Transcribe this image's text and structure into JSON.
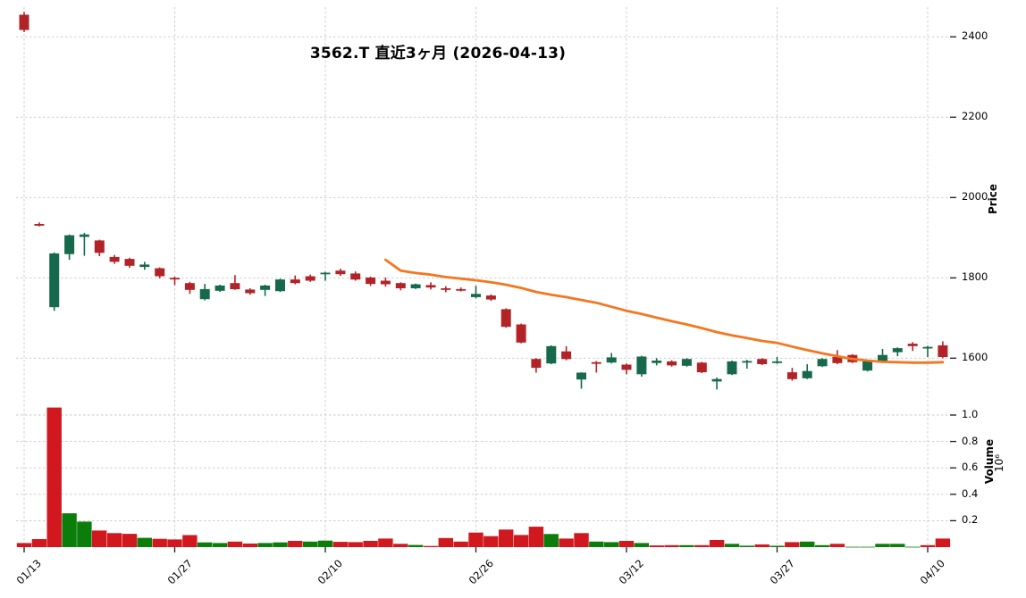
{
  "title": "3562.T 直近3ヶ月 (2026-04-13)",
  "axes": {
    "price_label": "Price",
    "volume_label": "Volume",
    "volume_unit": "10⁶",
    "price_ticks": [
      2400,
      2200,
      2000,
      1800,
      1600
    ],
    "volume_ticks": [
      1.0,
      0.8,
      0.6,
      0.4,
      0.2
    ],
    "x_ticks": [
      {
        "day": 0,
        "label": "01/13"
      },
      {
        "day": 10,
        "label": "01/27"
      },
      {
        "day": 20,
        "label": "02/10"
      },
      {
        "day": 30,
        "label": "02/26"
      },
      {
        "day": 40,
        "label": "03/12"
      },
      {
        "day": 50,
        "label": "03/27"
      },
      {
        "day": 60,
        "label": "04/10"
      }
    ]
  },
  "chart_data": {
    "type": "candlestick+volume",
    "title": "3562.T 直近3ヶ月 (2026-04-13)",
    "price_axis_range": [
      1500,
      2475
    ],
    "volume_axis_range": [
      0,
      1.11
    ],
    "grid": "dashed",
    "dates": [
      "01/13",
      "01/14",
      "01/15",
      "01/16",
      "01/19",
      "01/20",
      "01/21",
      "01/22",
      "01/23",
      "01/26",
      "01/27",
      "01/28",
      "01/29",
      "01/30",
      "02/02",
      "02/03",
      "02/04",
      "02/05",
      "02/06",
      "02/09",
      "02/10",
      "02/12",
      "02/13",
      "02/16",
      "02/17",
      "02/18",
      "02/19",
      "02/20",
      "02/24",
      "02/25",
      "02/26",
      "02/27",
      "03/02",
      "03/03",
      "03/04",
      "03/05",
      "03/06",
      "03/09",
      "03/10",
      "03/11",
      "03/12",
      "03/13",
      "03/16",
      "03/17",
      "03/18",
      "03/19",
      "03/23",
      "03/24",
      "03/25",
      "03/26",
      "03/27",
      "03/30",
      "03/31",
      "04/01",
      "04/02",
      "04/03",
      "04/06",
      "04/07",
      "04/08",
      "04/09",
      "04/10",
      "04/13"
    ],
    "ohlc": [
      [
        2455,
        2462,
        2412,
        2417
      ],
      [
        1934,
        1938,
        1928,
        1930
      ],
      [
        1727,
        1863,
        1718,
        1861
      ],
      [
        1859,
        1908,
        1845,
        1906
      ],
      [
        1902,
        1912,
        1855,
        1908
      ],
      [
        1893,
        1895,
        1854,
        1862
      ],
      [
        1852,
        1857,
        1835,
        1840
      ],
      [
        1847,
        1850,
        1825,
        1830
      ],
      [
        1827,
        1840,
        1820,
        1833
      ],
      [
        1824,
        1826,
        1799,
        1804
      ],
      [
        1800,
        1803,
        1782,
        1798
      ],
      [
        1787,
        1790,
        1760,
        1770
      ],
      [
        1747,
        1785,
        1744,
        1772
      ],
      [
        1768,
        1783,
        1765,
        1781
      ],
      [
        1787,
        1807,
        1770,
        1772
      ],
      [
        1771,
        1774,
        1758,
        1762
      ],
      [
        1770,
        1783,
        1755,
        1781
      ],
      [
        1767,
        1798,
        1765,
        1796
      ],
      [
        1796,
        1806,
        1784,
        1787
      ],
      [
        1804,
        1808,
        1790,
        1793
      ],
      [
        1811,
        1815,
        1793,
        1813
      ],
      [
        1818,
        1823,
        1805,
        1809
      ],
      [
        1811,
        1816,
        1793,
        1796
      ],
      [
        1801,
        1803,
        1780,
        1785
      ],
      [
        1793,
        1801,
        1778,
        1784
      ],
      [
        1787,
        1789,
        1769,
        1774
      ],
      [
        1774,
        1786,
        1772,
        1784
      ],
      [
        1782,
        1789,
        1771,
        1776
      ],
      [
        1774,
        1779,
        1764,
        1773
      ],
      [
        1772,
        1776,
        1766,
        1769
      ],
      [
        1752,
        1780,
        1749,
        1760
      ],
      [
        1756,
        1759,
        1743,
        1746
      ],
      [
        1722,
        1724,
        1676,
        1678
      ],
      [
        1684,
        1686,
        1637,
        1639
      ],
      [
        1598,
        1600,
        1564,
        1576
      ],
      [
        1587,
        1632,
        1585,
        1630
      ],
      [
        1617,
        1630,
        1595,
        1598
      ],
      [
        1547,
        1565,
        1524,
        1564
      ],
      [
        1590,
        1593,
        1564,
        1589
      ],
      [
        1589,
        1613,
        1587,
        1602
      ],
      [
        1584,
        1587,
        1560,
        1571
      ],
      [
        1560,
        1606,
        1554,
        1604
      ],
      [
        1588,
        1600,
        1582,
        1594
      ],
      [
        1592,
        1595,
        1579,
        1582
      ],
      [
        1581,
        1600,
        1579,
        1598
      ],
      [
        1589,
        1591,
        1563,
        1565
      ],
      [
        1542,
        1552,
        1522,
        1548
      ],
      [
        1560,
        1594,
        1558,
        1592
      ],
      [
        1593,
        1596,
        1574,
        1593
      ],
      [
        1598,
        1600,
        1583,
        1585
      ],
      [
        1589,
        1603,
        1586,
        1592
      ],
      [
        1565,
        1576,
        1544,
        1548
      ],
      [
        1550,
        1585,
        1548,
        1568
      ],
      [
        1580,
        1600,
        1578,
        1598
      ],
      [
        1603,
        1620,
        1585,
        1588
      ],
      [
        1608,
        1610,
        1588,
        1590
      ],
      [
        1569,
        1594,
        1567,
        1592
      ],
      [
        1590,
        1623,
        1588,
        1608
      ],
      [
        1615,
        1627,
        1605,
        1625
      ],
      [
        1636,
        1640,
        1618,
        1630
      ],
      [
        1628,
        1631,
        1603,
        1628
      ],
      [
        1632,
        1642,
        1600,
        1603
      ]
    ],
    "volume": [
      0.031,
      0.061,
      1.057,
      0.256,
      0.193,
      0.126,
      0.106,
      0.101,
      0.07,
      0.063,
      0.058,
      0.091,
      0.036,
      0.031,
      0.042,
      0.027,
      0.031,
      0.036,
      0.047,
      0.042,
      0.049,
      0.04,
      0.038,
      0.047,
      0.065,
      0.025,
      0.016,
      0.009,
      0.069,
      0.042,
      0.11,
      0.083,
      0.133,
      0.092,
      0.155,
      0.099,
      0.065,
      0.106,
      0.042,
      0.038,
      0.047,
      0.031,
      0.013,
      0.015,
      0.015,
      0.015,
      0.054,
      0.025,
      0.011,
      0.02,
      0.01,
      0.038,
      0.042,
      0.015,
      0.025,
      0.003,
      0.003,
      0.025,
      0.025,
      0.003,
      0.015,
      0.065
    ],
    "ma25": {
      "start_day": 24,
      "values": [
        1845,
        1818,
        1812,
        1808,
        1802,
        1798,
        1794,
        1789,
        1783,
        1775,
        1765,
        1758,
        1752,
        1745,
        1738,
        1728,
        1718,
        1710,
        1701,
        1692,
        1684,
        1675,
        1665,
        1657,
        1650,
        1643,
        1638,
        1629,
        1620,
        1612,
        1605,
        1598,
        1594,
        1591,
        1590,
        1589,
        1589,
        1590
      ]
    },
    "colors": {
      "candle_up": "#16694a",
      "candle_down": "#b22328",
      "volume_up": "#0a7d0a",
      "volume_down": "#d1181e",
      "ma_line": "#f4761f",
      "grid": "#c7c7c7",
      "tick": "#1a1a1a"
    },
    "legend": "none"
  }
}
